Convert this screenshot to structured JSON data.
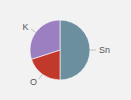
{
  "chart_data": {
    "type": "pie",
    "categories": [
      "Sn",
      "O",
      "K"
    ],
    "values": [
      50,
      20,
      30
    ],
    "colors": [
      "#6b8f9e",
      "#c0392b",
      "#9b7fc0"
    ]
  }
}
